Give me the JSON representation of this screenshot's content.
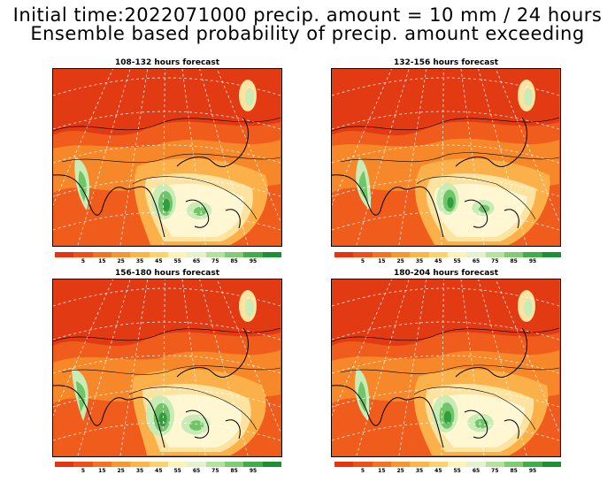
{
  "title": {
    "line1": "Initial time:2022071000 precip. amount = 10 mm / 24 hours",
    "line2": "Ensemble based probability of precip. amount exceeding"
  },
  "panels": [
    {
      "title": "108-132 hours forecast"
    },
    {
      "title": "132-156 hours forecast"
    },
    {
      "title": "156-180 hours forecast"
    },
    {
      "title": "180-204 hours forecast"
    }
  ],
  "colorbar": {
    "colors": [
      "#e8330f",
      "#ef4f16",
      "#f57120",
      "#f8952d",
      "#fbb543",
      "#fdd26a",
      "#fff2b5",
      "#e3f2cc",
      "#b3e29d",
      "#7fcc73",
      "#3fae48",
      "#1a8f33"
    ],
    "labels": [
      "5",
      "15",
      "25",
      "35",
      "45",
      "55",
      "65",
      "75",
      "85",
      "95"
    ]
  },
  "colors": {
    "deep_red": "#e23a12",
    "red_orange": "#ef5c1c",
    "orange": "#f7882a",
    "light_orange": "#fbb04a",
    "yellow": "#fde3a0",
    "cream": "#fff6d2",
    "light_green": "#c9ecb7",
    "green": "#6fc567",
    "dark_green": "#2f9e3f"
  }
}
